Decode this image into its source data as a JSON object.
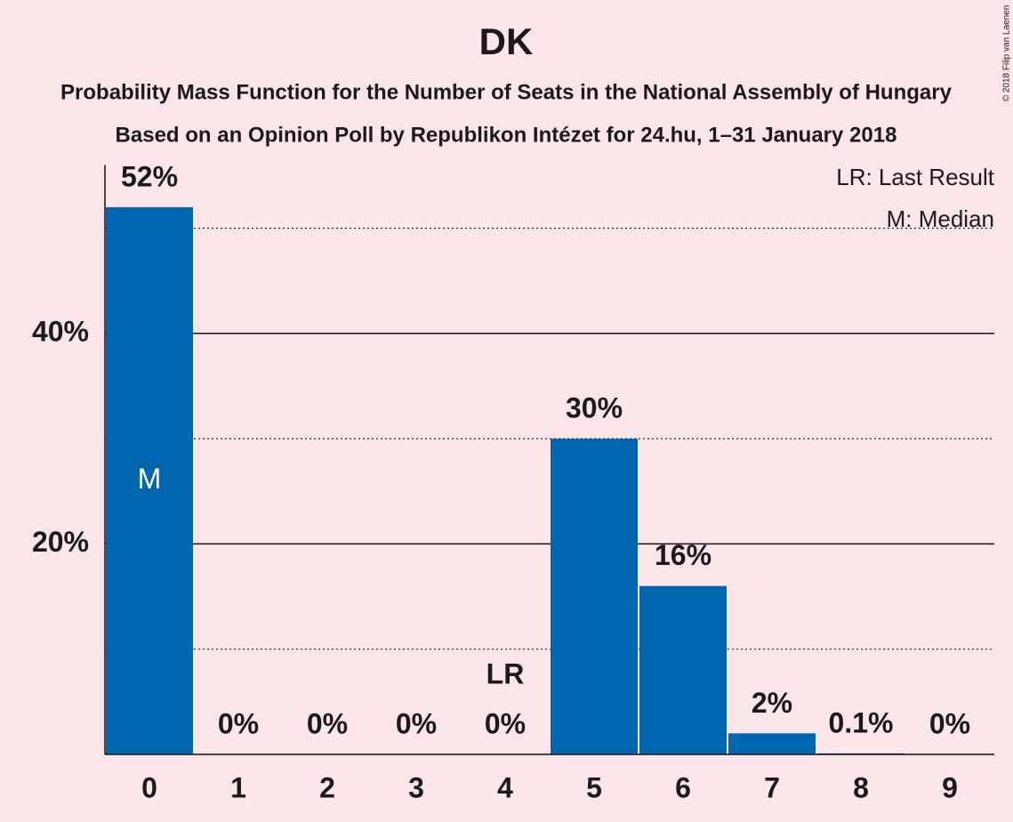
{
  "chart_data": {
    "type": "bar",
    "title": "DK",
    "subtitles": [
      "Probability Mass Function for the Number of Seats in the National Assembly of Hungary",
      "Based on an Opinion Poll by Republikon Intézet for 24.hu, 1–31 January 2018"
    ],
    "categories": [
      "0",
      "1",
      "2",
      "3",
      "4",
      "5",
      "6",
      "7",
      "8",
      "9"
    ],
    "values": [
      52,
      0,
      0,
      0,
      0,
      30,
      16,
      2,
      0.1,
      0
    ],
    "value_labels": [
      "52%",
      "0%",
      "0%",
      "0%",
      "0%",
      "30%",
      "16%",
      "2%",
      "0.1%",
      "0%"
    ],
    "color": "#0066b0",
    "ylim": [
      0,
      56
    ],
    "yticks": [
      {
        "value": 20,
        "label": "20%"
      },
      {
        "value": 40,
        "label": "40%"
      }
    ],
    "minor_yticks": [
      10,
      30,
      50
    ],
    "grid": true,
    "annotations": [
      {
        "label": "M",
        "category": "0"
      },
      {
        "label": "LR",
        "category": "4"
      }
    ],
    "legend": [
      "LR: Last Result",
      "M: Median"
    ],
    "copyright": "© 2018 Filip van Laenen"
  }
}
